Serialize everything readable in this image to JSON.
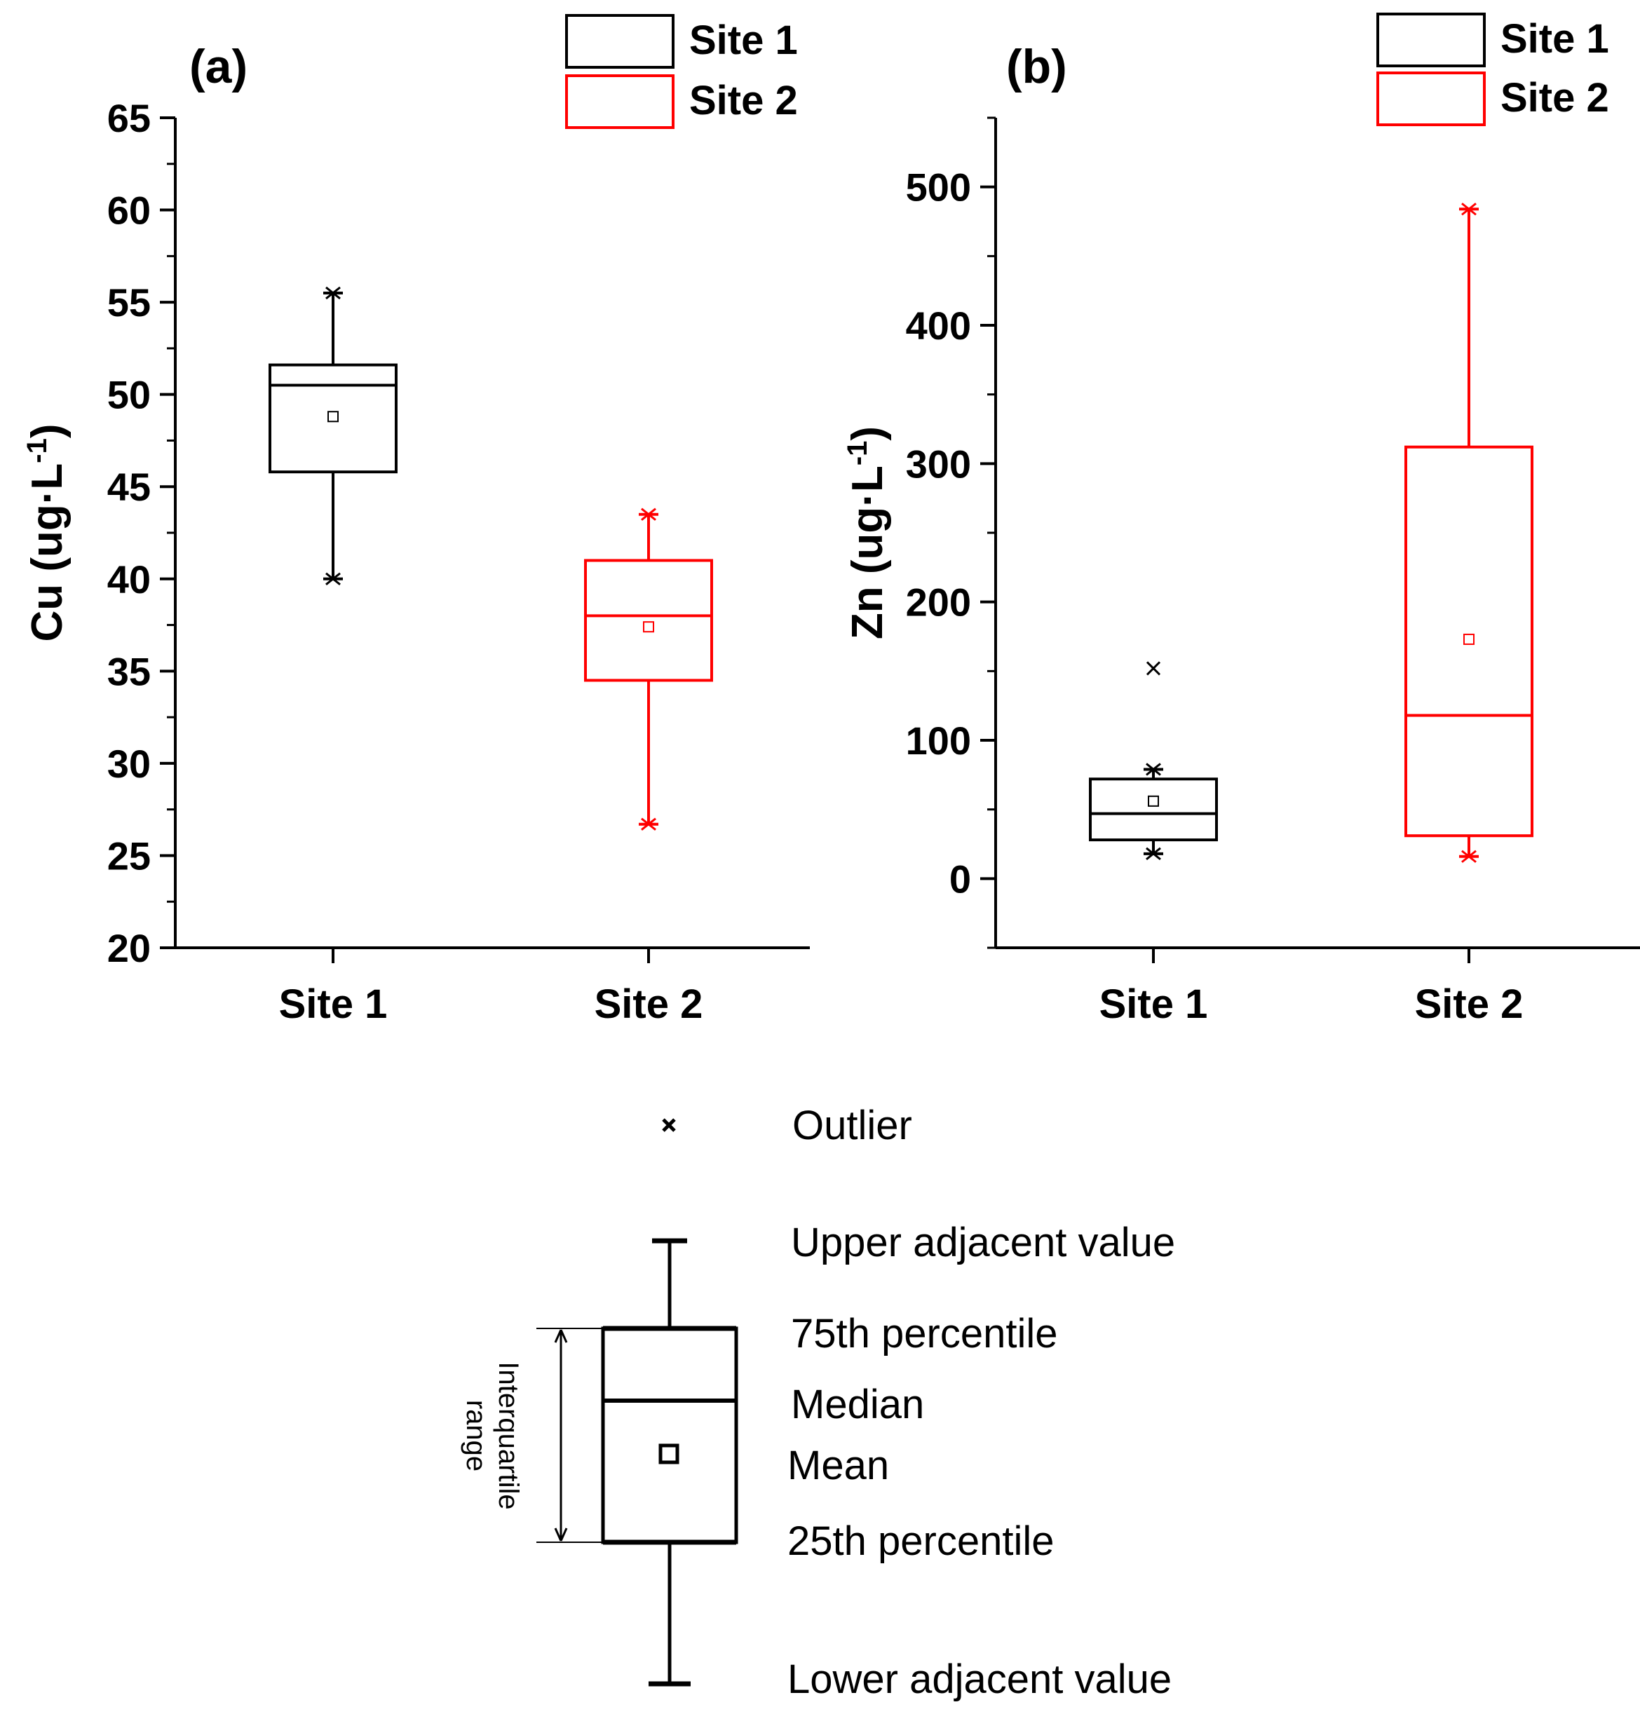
{
  "chart_data": [
    {
      "type": "box",
      "panel_label": "(a)",
      "ylabel_main": "Cu (ug·L",
      "ylabel_sup": "-1",
      "ylabel_close": ")",
      "ylim": [
        20,
        65
      ],
      "yticks": [
        20,
        25,
        30,
        35,
        40,
        45,
        50,
        55,
        60,
        65
      ],
      "categories": [
        "Site 1",
        "Site 2"
      ],
      "legend": [
        {
          "name": "Site 1",
          "color": "#000000"
        },
        {
          "name": "Site 2",
          "color": "#ff0000"
        }
      ],
      "series": [
        {
          "name": "Site 1",
          "color": "#000000",
          "lower": 40.0,
          "q1": 45.8,
          "median": 50.5,
          "q3": 51.6,
          "upper": 55.5,
          "mean": 48.8,
          "outliers": []
        },
        {
          "name": "Site 2",
          "color": "#ff0000",
          "lower": 26.7,
          "q1": 34.5,
          "median": 38.0,
          "q3": 41.0,
          "upper": 43.5,
          "mean": 37.4,
          "outliers": []
        }
      ]
    },
    {
      "type": "box",
      "panel_label": "(b)",
      "ylabel_main": "Zn (ug·L",
      "ylabel_sup": "-1",
      "ylabel_close": ")",
      "ylim": [
        -50,
        550
      ],
      "yticks": [
        0,
        100,
        200,
        300,
        400,
        500
      ],
      "categories": [
        "Site 1",
        "Site 2"
      ],
      "legend": [
        {
          "name": "Site 1",
          "color": "#000000"
        },
        {
          "name": "Site 2",
          "color": "#ff0000"
        }
      ],
      "series": [
        {
          "name": "Site 1",
          "color": "#000000",
          "lower": 18,
          "q1": 28,
          "median": 47,
          "q3": 72,
          "upper": 79,
          "mean": 56,
          "outliers": [
            152
          ]
        },
        {
          "name": "Site 2",
          "color": "#ff0000",
          "lower": 16,
          "q1": 31,
          "median": 118,
          "q3": 312,
          "upper": 484,
          "mean": 173,
          "outliers": []
        }
      ]
    }
  ],
  "key": {
    "outlier": "Outlier",
    "upper_adjacent": "Upper adjacent value",
    "p75": "75th percentile",
    "median": "Median",
    "mean": "Mean",
    "p25": "25th percentile",
    "lower_adjacent": "Lower adjacent value",
    "iqr_line1": "Interquartile",
    "iqr_line2": "range"
  }
}
